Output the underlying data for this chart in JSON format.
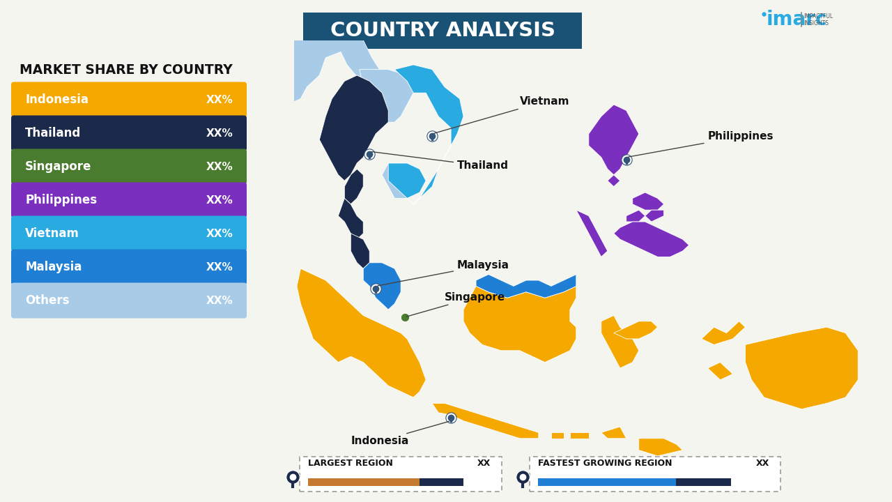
{
  "title": "COUNTRY ANALYSIS",
  "title_bg_color": "#1a5276",
  "title_text_color": "#ffffff",
  "subtitle": "MARKET SHARE BY COUNTRY",
  "bg_color": "#f5f5f0",
  "legend_items": [
    {
      "label": "Indonesia",
      "value": "XX%",
      "color": "#f5a800"
    },
    {
      "label": "Thailand",
      "value": "XX%",
      "color": "#1b2a4a"
    },
    {
      "label": "Singapore",
      "value": "XX%",
      "color": "#4a7c2f"
    },
    {
      "label": "Philippines",
      "value": "XX%",
      "color": "#7b2fbe"
    },
    {
      "label": "Vietnam",
      "value": "XX%",
      "color": "#29abe2"
    },
    {
      "label": "Malaysia",
      "value": "XX%",
      "color": "#1e7fd4"
    },
    {
      "label": "Others",
      "value": "XX%",
      "color": "#a8cce8"
    }
  ],
  "country_colors": {
    "Indonesia": "#f5a800",
    "Thailand": "#1b2a4a",
    "Vietnam": "#29abe2",
    "Malaysia": "#1e7fd4",
    "Philippines": "#7b2fbe",
    "Singapore": "#4a7c2f",
    "Others_sea": "#a8cce8"
  },
  "imarc_color": "#29abe2",
  "largest_region_label": "LARGEST REGION",
  "largest_region_value": "XX",
  "fastest_growing_label": "FASTEST GROWING REGION",
  "fastest_growing_value": "XX",
  "largest_bar_color": "#c47a30",
  "fastest_bar_color": "#1e7fd4"
}
